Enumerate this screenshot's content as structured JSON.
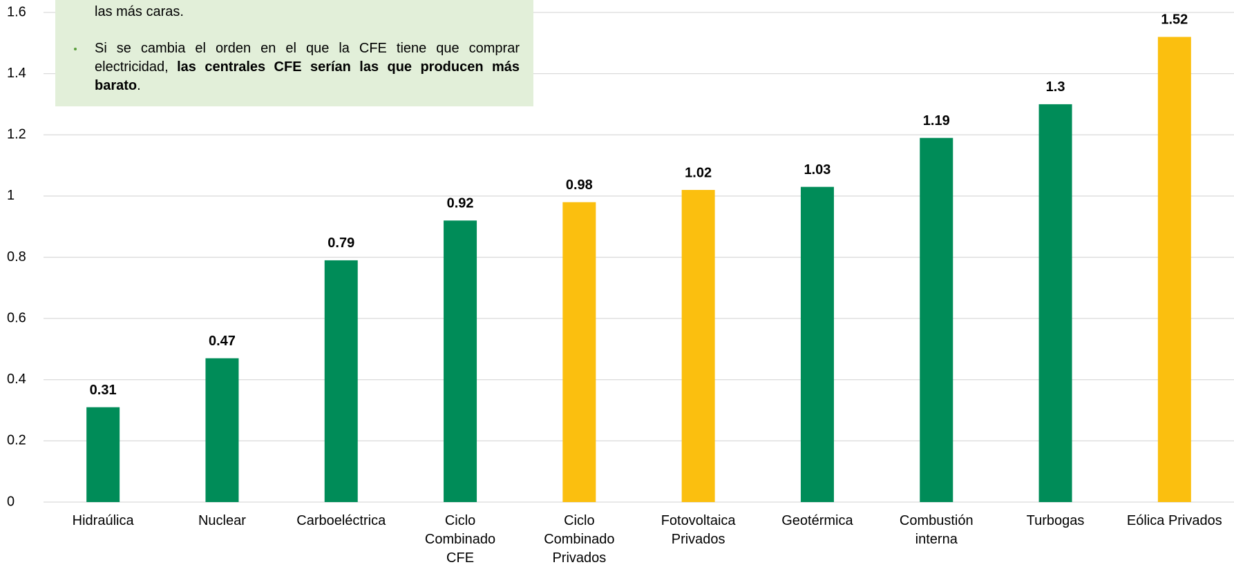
{
  "chart_data": {
    "type": "bar",
    "categories": [
      "Hidraúlica",
      "Nuclear",
      "Carboeléctrica",
      "Ciclo Combinado CFE",
      "Ciclo Combinado Privados",
      "Fotovoltaica Privados",
      "Geotérmica",
      "Combustión interna",
      "Turbogas",
      "Eólica Privados"
    ],
    "values": [
      0.31,
      0.47,
      0.79,
      0.92,
      0.98,
      1.02,
      1.03,
      1.19,
      1.3,
      1.52
    ],
    "colors": [
      "#008c58",
      "#008c58",
      "#008c58",
      "#008c58",
      "#fbbf0f",
      "#fbbf0f",
      "#008c58",
      "#008c58",
      "#008c58",
      "#fbbf0f"
    ],
    "ylim": [
      0,
      1.6
    ],
    "yticks": [
      0,
      0.2,
      0.4,
      0.6,
      0.8,
      1,
      1.2,
      1.4,
      1.6
    ],
    "grid": true,
    "note": {
      "first": "las más caras.",
      "bullet": "Si se cambia el orden en el que la CFE tiene que comprar electricidad, ",
      "bold": "las centrales CFE serían las que producen más barato",
      "end": "."
    }
  }
}
